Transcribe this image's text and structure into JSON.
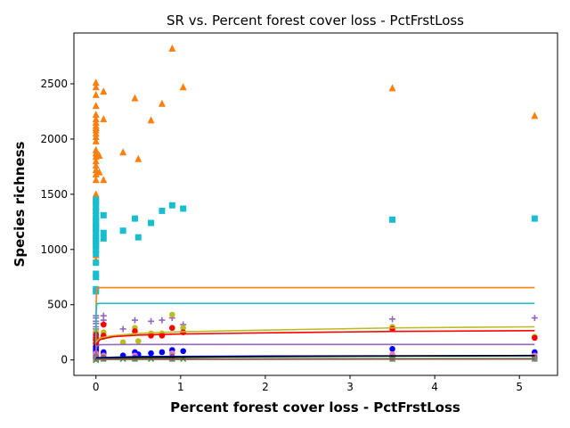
{
  "chart_data": {
    "type": "scatter",
    "title": "SR vs. Percent forest cover loss - PctFrstLoss",
    "xlabel": "Percent forest cover loss - PctFrstLoss",
    "ylabel": "Species richness",
    "xlim": [
      -0.26,
      5.45
    ],
    "ylim": [
      -140,
      2960
    ],
    "xticks": [
      0,
      1,
      2,
      3,
      4,
      5
    ],
    "yticks": [
      0,
      500,
      1000,
      1500,
      2000,
      2500
    ],
    "grid": false,
    "colors": {
      "orange": "#ff7f0e",
      "cyan": "#17becf",
      "olive": "#bcbd22",
      "red": "#ff0000",
      "purple": "#9467bd",
      "blue": "#0000ff",
      "black": "#000000",
      "green": "#2ca02c",
      "magenta": "#e377c2",
      "brown": "#8c564b",
      "gray": "#7f7f7f"
    },
    "series": [
      {
        "marker": "triangle",
        "color": "#ff7f0e",
        "points": [
          [
            0,
            2510
          ],
          [
            0,
            2470
          ],
          [
            0,
            2400
          ],
          [
            0,
            2300
          ],
          [
            0,
            2220
          ],
          [
            0,
            2180
          ],
          [
            0,
            2150
          ],
          [
            0,
            2120
          ],
          [
            0,
            2100
          ],
          [
            0,
            2080
          ],
          [
            0,
            2050
          ],
          [
            0,
            2020
          ],
          [
            0,
            1980
          ],
          [
            0,
            1900
          ],
          [
            0,
            1870
          ],
          [
            0,
            1840
          ],
          [
            0,
            1800
          ],
          [
            0,
            1760
          ],
          [
            0,
            1720
          ],
          [
            0,
            1680
          ],
          [
            0,
            1630
          ],
          [
            0,
            1500
          ],
          [
            0,
            1480
          ],
          [
            0,
            1450
          ],
          [
            0,
            1380
          ],
          [
            0,
            1350
          ],
          [
            0,
            1300
          ],
          [
            0,
            1250
          ],
          [
            0,
            1200
          ],
          [
            0,
            1100
          ],
          [
            0,
            1000
          ],
          [
            0,
            950
          ],
          [
            0,
            900
          ],
          [
            0.04,
            1850
          ],
          [
            0.04,
            1700
          ],
          [
            0.09,
            2430
          ],
          [
            0.09,
            2180
          ],
          [
            0.09,
            1630
          ],
          [
            0.32,
            1880
          ],
          [
            0.46,
            2370
          ],
          [
            0.5,
            1820
          ],
          [
            0.65,
            2170
          ],
          [
            0.78,
            2320
          ],
          [
            0.9,
            2820
          ],
          [
            1.03,
            2470
          ],
          [
            3.5,
            2460
          ],
          [
            5.18,
            2210
          ]
        ]
      },
      {
        "marker": "square",
        "color": "#17becf",
        "points": [
          [
            0,
            1450
          ],
          [
            0,
            1420
          ],
          [
            0,
            1390
          ],
          [
            0,
            1350
          ],
          [
            0,
            1310
          ],
          [
            0,
            1280
          ],
          [
            0,
            1250
          ],
          [
            0,
            1220
          ],
          [
            0,
            1200
          ],
          [
            0,
            1180
          ],
          [
            0,
            1150
          ],
          [
            0,
            1120
          ],
          [
            0,
            1100
          ],
          [
            0,
            1080
          ],
          [
            0,
            1050
          ],
          [
            0,
            1030
          ],
          [
            0,
            1000
          ],
          [
            0,
            960
          ],
          [
            0,
            880
          ],
          [
            0,
            780
          ],
          [
            0,
            750
          ],
          [
            0,
            640
          ],
          [
            0,
            620
          ],
          [
            0.09,
            1310
          ],
          [
            0.09,
            1150
          ],
          [
            0.09,
            1100
          ],
          [
            0.32,
            1170
          ],
          [
            0.46,
            1280
          ],
          [
            0.5,
            1110
          ],
          [
            0.65,
            1240
          ],
          [
            0.78,
            1350
          ],
          [
            0.9,
            1400
          ],
          [
            1.03,
            1370
          ],
          [
            3.5,
            1270
          ],
          [
            5.18,
            1280
          ]
        ]
      },
      {
        "marker": "plus",
        "color": "#9467bd",
        "points": [
          [
            0,
            400
          ],
          [
            0,
            380
          ],
          [
            0,
            350
          ],
          [
            0,
            330
          ],
          [
            0,
            300
          ],
          [
            0,
            280
          ],
          [
            0,
            250
          ],
          [
            0,
            220
          ],
          [
            0,
            200
          ],
          [
            0,
            180
          ],
          [
            0,
            150
          ],
          [
            0,
            120
          ],
          [
            0,
            100
          ],
          [
            0,
            80
          ],
          [
            0,
            60
          ],
          [
            0,
            40
          ],
          [
            0,
            20
          ],
          [
            0.09,
            400
          ],
          [
            0.09,
            360
          ],
          [
            0.09,
            330
          ],
          [
            0.32,
            280
          ],
          [
            0.46,
            360
          ],
          [
            0.65,
            350
          ],
          [
            0.78,
            360
          ],
          [
            0.9,
            380
          ],
          [
            1.03,
            320
          ],
          [
            3.5,
            370
          ],
          [
            5.18,
            380
          ]
        ]
      },
      {
        "marker": "circle",
        "color": "#bcbd22",
        "points": [
          [
            0,
            260
          ],
          [
            0,
            230
          ],
          [
            0,
            210
          ],
          [
            0,
            190
          ],
          [
            0,
            160
          ],
          [
            0,
            140
          ],
          [
            0,
            120
          ],
          [
            0,
            100
          ],
          [
            0,
            80
          ],
          [
            0,
            60
          ],
          [
            0.09,
            250
          ],
          [
            0.09,
            210
          ],
          [
            0.32,
            160
          ],
          [
            0.46,
            290
          ],
          [
            0.5,
            170
          ],
          [
            0.65,
            240
          ],
          [
            0.78,
            240
          ],
          [
            0.9,
            410
          ],
          [
            1.03,
            290
          ],
          [
            3.5,
            300
          ],
          [
            5.18,
            210
          ]
        ]
      },
      {
        "marker": "circle",
        "color": "#ff0000",
        "points": [
          [
            0,
            230
          ],
          [
            0,
            200
          ],
          [
            0,
            180
          ],
          [
            0,
            150
          ],
          [
            0,
            120
          ],
          [
            0,
            90
          ],
          [
            0,
            60
          ],
          [
            0.09,
            320
          ],
          [
            0.09,
            220
          ],
          [
            0.46,
            260
          ],
          [
            0.65,
            220
          ],
          [
            0.78,
            220
          ],
          [
            0.9,
            290
          ],
          [
            1.03,
            250
          ],
          [
            3.5,
            280
          ],
          [
            5.18,
            200
          ]
        ]
      },
      {
        "marker": "circle",
        "color": "#0000ff",
        "points": [
          [
            0,
            120
          ],
          [
            0,
            100
          ],
          [
            0,
            80
          ],
          [
            0,
            60
          ],
          [
            0,
            40
          ],
          [
            0,
            20
          ],
          [
            0.09,
            70
          ],
          [
            0.09,
            50
          ],
          [
            0.32,
            40
          ],
          [
            0.46,
            70
          ],
          [
            0.5,
            50
          ],
          [
            0.65,
            60
          ],
          [
            0.78,
            70
          ],
          [
            0.9,
            90
          ],
          [
            1.03,
            80
          ],
          [
            3.5,
            100
          ],
          [
            5.18,
            70
          ]
        ]
      },
      {
        "marker": "x",
        "color": "#2ca02c",
        "points": [
          [
            0,
            40
          ],
          [
            0,
            30
          ],
          [
            0,
            20
          ],
          [
            0,
            10
          ],
          [
            0,
            0
          ],
          [
            0.09,
            10
          ],
          [
            0.32,
            10
          ],
          [
            0.46,
            10
          ],
          [
            0.65,
            10
          ],
          [
            0.9,
            10
          ],
          [
            1.03,
            10
          ],
          [
            3.5,
            10
          ],
          [
            5.18,
            10
          ]
        ]
      },
      {
        "marker": "circle",
        "color": "#e377c2",
        "points": [
          [
            0,
            60
          ],
          [
            0,
            40
          ],
          [
            0.09,
            40
          ],
          [
            0.46,
            40
          ],
          [
            0.9,
            60
          ],
          [
            3.5,
            50
          ],
          [
            5.18,
            40
          ]
        ]
      },
      {
        "marker": "circle",
        "color": "#8c564b",
        "points": [
          [
            0,
            30
          ],
          [
            0,
            20
          ],
          [
            0.09,
            20
          ],
          [
            0.46,
            20
          ],
          [
            0.9,
            30
          ],
          [
            3.5,
            20
          ],
          [
            5.18,
            20
          ]
        ]
      },
      {
        "marker": "circle",
        "color": "#7f7f7f",
        "points": [
          [
            0,
            20
          ],
          [
            0,
            10
          ],
          [
            0.09,
            10
          ],
          [
            0.46,
            10
          ],
          [
            0.9,
            10
          ],
          [
            3.5,
            10
          ],
          [
            5.18,
            10
          ]
        ]
      }
    ],
    "fit_lines": [
      {
        "color": "#ff7f0e",
        "points": [
          [
            0,
            0
          ],
          [
            0.001,
            300
          ],
          [
            0.003,
            500
          ],
          [
            0.006,
            600
          ],
          [
            0.012,
            650
          ],
          [
            0.05,
            655
          ],
          [
            1,
            655
          ],
          [
            5.18,
            655
          ]
        ]
      },
      {
        "color": "#17becf",
        "points": [
          [
            0,
            0
          ],
          [
            0.001,
            250
          ],
          [
            0.003,
            420
          ],
          [
            0.007,
            490
          ],
          [
            0.015,
            510
          ],
          [
            0.05,
            512
          ],
          [
            1,
            512
          ],
          [
            5.18,
            512
          ]
        ]
      },
      {
        "color": "#bcbd22",
        "points": [
          [
            0,
            0
          ],
          [
            0.002,
            120
          ],
          [
            0.01,
            170
          ],
          [
            0.05,
            200
          ],
          [
            0.2,
            220
          ],
          [
            0.5,
            240
          ],
          [
            1,
            255
          ],
          [
            2,
            270
          ],
          [
            3.5,
            290
          ],
          [
            5.18,
            300
          ]
        ]
      },
      {
        "color": "#ff0000",
        "points": [
          [
            0,
            0
          ],
          [
            0.002,
            100
          ],
          [
            0.01,
            150
          ],
          [
            0.05,
            185
          ],
          [
            0.2,
            210
          ],
          [
            0.5,
            225
          ],
          [
            1,
            235
          ],
          [
            2,
            245
          ],
          [
            3.5,
            258
          ],
          [
            5.18,
            265
          ]
        ]
      },
      {
        "color": "#9467bd",
        "points": [
          [
            0,
            0
          ],
          [
            0.002,
            80
          ],
          [
            0.01,
            125
          ],
          [
            0.05,
            138
          ],
          [
            0.5,
            140
          ],
          [
            5.18,
            140
          ]
        ]
      },
      {
        "color": "#0000ff",
        "points": [
          [
            0,
            0
          ],
          [
            0.01,
            20
          ],
          [
            0.5,
            30
          ],
          [
            2,
            35
          ],
          [
            5.18,
            38
          ]
        ]
      },
      {
        "color": "#000000",
        "points": [
          [
            0,
            0
          ],
          [
            0.01,
            15
          ],
          [
            0.5,
            22
          ],
          [
            2,
            30
          ],
          [
            5.18,
            40
          ]
        ]
      },
      {
        "color": "#2ca02c",
        "points": [
          [
            0,
            0
          ],
          [
            0.01,
            8
          ],
          [
            0.5,
            10
          ],
          [
            5.18,
            12
          ]
        ]
      },
      {
        "color": "#8c564b",
        "points": [
          [
            0,
            0
          ],
          [
            0.01,
            5
          ],
          [
            5.18,
            8
          ]
        ]
      }
    ]
  }
}
